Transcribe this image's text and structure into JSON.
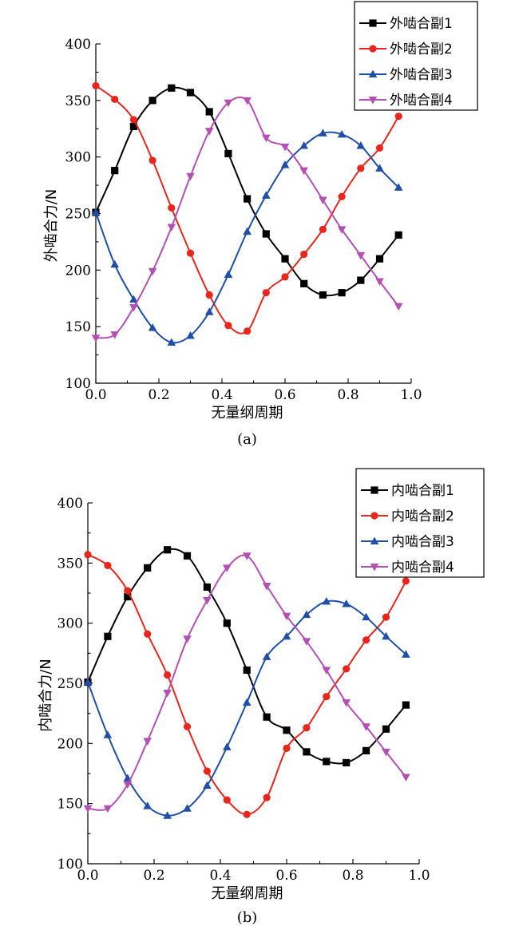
{
  "colors": {
    "s1": "#000000",
    "s2": "#e8261c",
    "s3": "#1f4fa8",
    "s4": "#b350b4"
  },
  "chart_data": [
    {
      "type": "line",
      "panel_label": "(a)",
      "xlabel": "无量纲周期",
      "ylabel": "外啮合力/N",
      "xlim": [
        0.0,
        1.0
      ],
      "ylim": [
        100,
        400
      ],
      "xticks": [
        "0.0",
        "0.2",
        "0.4",
        "0.6",
        "0.8",
        "1.0"
      ],
      "yticks": [
        "100",
        "150",
        "200",
        "250",
        "300",
        "350",
        "400"
      ],
      "legend_position": "top-right",
      "x": [
        0.0,
        0.06,
        0.12,
        0.18,
        0.24,
        0.3,
        0.36,
        0.42,
        0.48,
        0.54,
        0.6,
        0.66,
        0.72,
        0.78,
        0.84,
        0.9,
        0.96
      ],
      "series": [
        {
          "name": "外啮合副1",
          "color": "#000000",
          "marker": "square",
          "values": [
            251,
            288,
            327,
            350,
            361,
            357,
            340,
            303,
            263,
            232,
            210,
            188,
            178,
            180,
            191,
            210,
            231
          ]
        },
        {
          "name": "外啮合副2",
          "color": "#e8261c",
          "marker": "circle",
          "values": [
            363,
            351,
            333,
            297,
            255,
            215,
            178,
            151,
            146,
            180,
            194,
            214,
            236,
            265,
            290,
            308,
            336
          ]
        },
        {
          "name": "外啮合副3",
          "color": "#1f4fa8",
          "marker": "triangle-up",
          "values": [
            251,
            205,
            174,
            149,
            136,
            142,
            163,
            196,
            234,
            266,
            293,
            310,
            321,
            320,
            310,
            290,
            273
          ]
        },
        {
          "name": "外啮合副4",
          "color": "#b350b4",
          "marker": "triangle-down",
          "values": [
            140,
            143,
            167,
            199,
            238,
            283,
            323,
            348,
            350,
            317,
            309,
            288,
            262,
            236,
            213,
            190,
            168
          ]
        }
      ]
    },
    {
      "type": "line",
      "panel_label": "(b)",
      "xlabel": "无量纲周期",
      "ylabel": "内啮合力/N",
      "xlim": [
        0.0,
        1.0
      ],
      "ylim": [
        100,
        400
      ],
      "xticks": [
        "0.0",
        "0.2",
        "0.4",
        "0.6",
        "0.8",
        "1.0"
      ],
      "yticks": [
        "100",
        "150",
        "200",
        "250",
        "300",
        "350",
        "400"
      ],
      "legend_position": "top-right",
      "x": [
        0.0,
        0.06,
        0.12,
        0.18,
        0.24,
        0.3,
        0.36,
        0.42,
        0.48,
        0.54,
        0.6,
        0.66,
        0.72,
        0.78,
        0.84,
        0.9,
        0.96
      ],
      "series": [
        {
          "name": "内啮合副1",
          "color": "#000000",
          "marker": "square",
          "values": [
            251,
            289,
            322,
            346,
            361,
            356,
            330,
            300,
            261,
            222,
            211,
            193,
            185,
            184,
            194,
            212,
            232
          ]
        },
        {
          "name": "内啮合副2",
          "color": "#e8261c",
          "marker": "circle",
          "values": [
            357,
            348,
            327,
            291,
            257,
            214,
            177,
            153,
            141,
            155,
            196,
            213,
            239,
            262,
            286,
            305,
            335
          ]
        },
        {
          "name": "内啮合副3",
          "color": "#1f4fa8",
          "marker": "triangle-up",
          "values": [
            251,
            207,
            171,
            148,
            140,
            146,
            165,
            197,
            234,
            272,
            289,
            307,
            318,
            316,
            305,
            289,
            274
          ]
        },
        {
          "name": "内啮合副4",
          "color": "#b350b4",
          "marker": "triangle-down",
          "values": [
            146,
            146,
            166,
            202,
            242,
            287,
            319,
            346,
            356,
            331,
            306,
            285,
            261,
            234,
            214,
            193,
            172
          ]
        }
      ]
    }
  ]
}
